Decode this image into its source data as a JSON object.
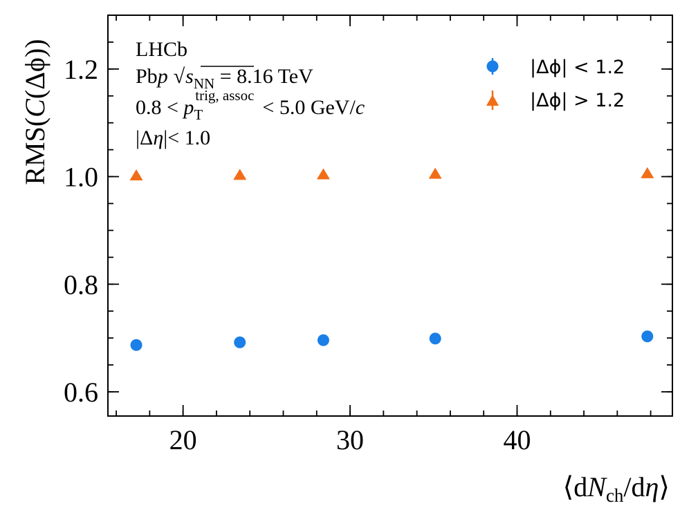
{
  "chart_data": {
    "type": "scatter",
    "xlabel": "⟨dNch/dη⟩",
    "ylabel": "RMS(C(Δφ))",
    "xlim": [
      15.5,
      49.3
    ],
    "ylim": [
      0.555,
      1.3
    ],
    "x_major_ticks": [
      20,
      30,
      40
    ],
    "x_minor_step": 2,
    "y_major_ticks": [
      0.6,
      0.8,
      1.0,
      1.2
    ],
    "y_minor_step": 0.05,
    "legend_position": "top-right",
    "annotations": {
      "experiment": "LHCb",
      "system": "Pbp √sNN = 8.16 TeV",
      "pt_range": "0.8 < pT trig, assoc < 5.0 GeV/c",
      "eta_cut": "|Δη|< 1.0"
    },
    "series": [
      {
        "name": "|Δϕ| < 1.2",
        "marker": "circle",
        "color": "#1a7fe6",
        "x": [
          17.2,
          23.4,
          28.4,
          35.1,
          47.8
        ],
        "y": [
          0.687,
          0.692,
          0.696,
          0.699,
          0.703
        ]
      },
      {
        "name": "|Δϕ| > 1.2",
        "marker": "triangle",
        "color": "#f26d17",
        "x": [
          17.2,
          23.4,
          28.4,
          35.1,
          47.8
        ],
        "y": [
          1.002,
          1.003,
          1.004,
          1.005,
          1.006
        ]
      }
    ]
  }
}
